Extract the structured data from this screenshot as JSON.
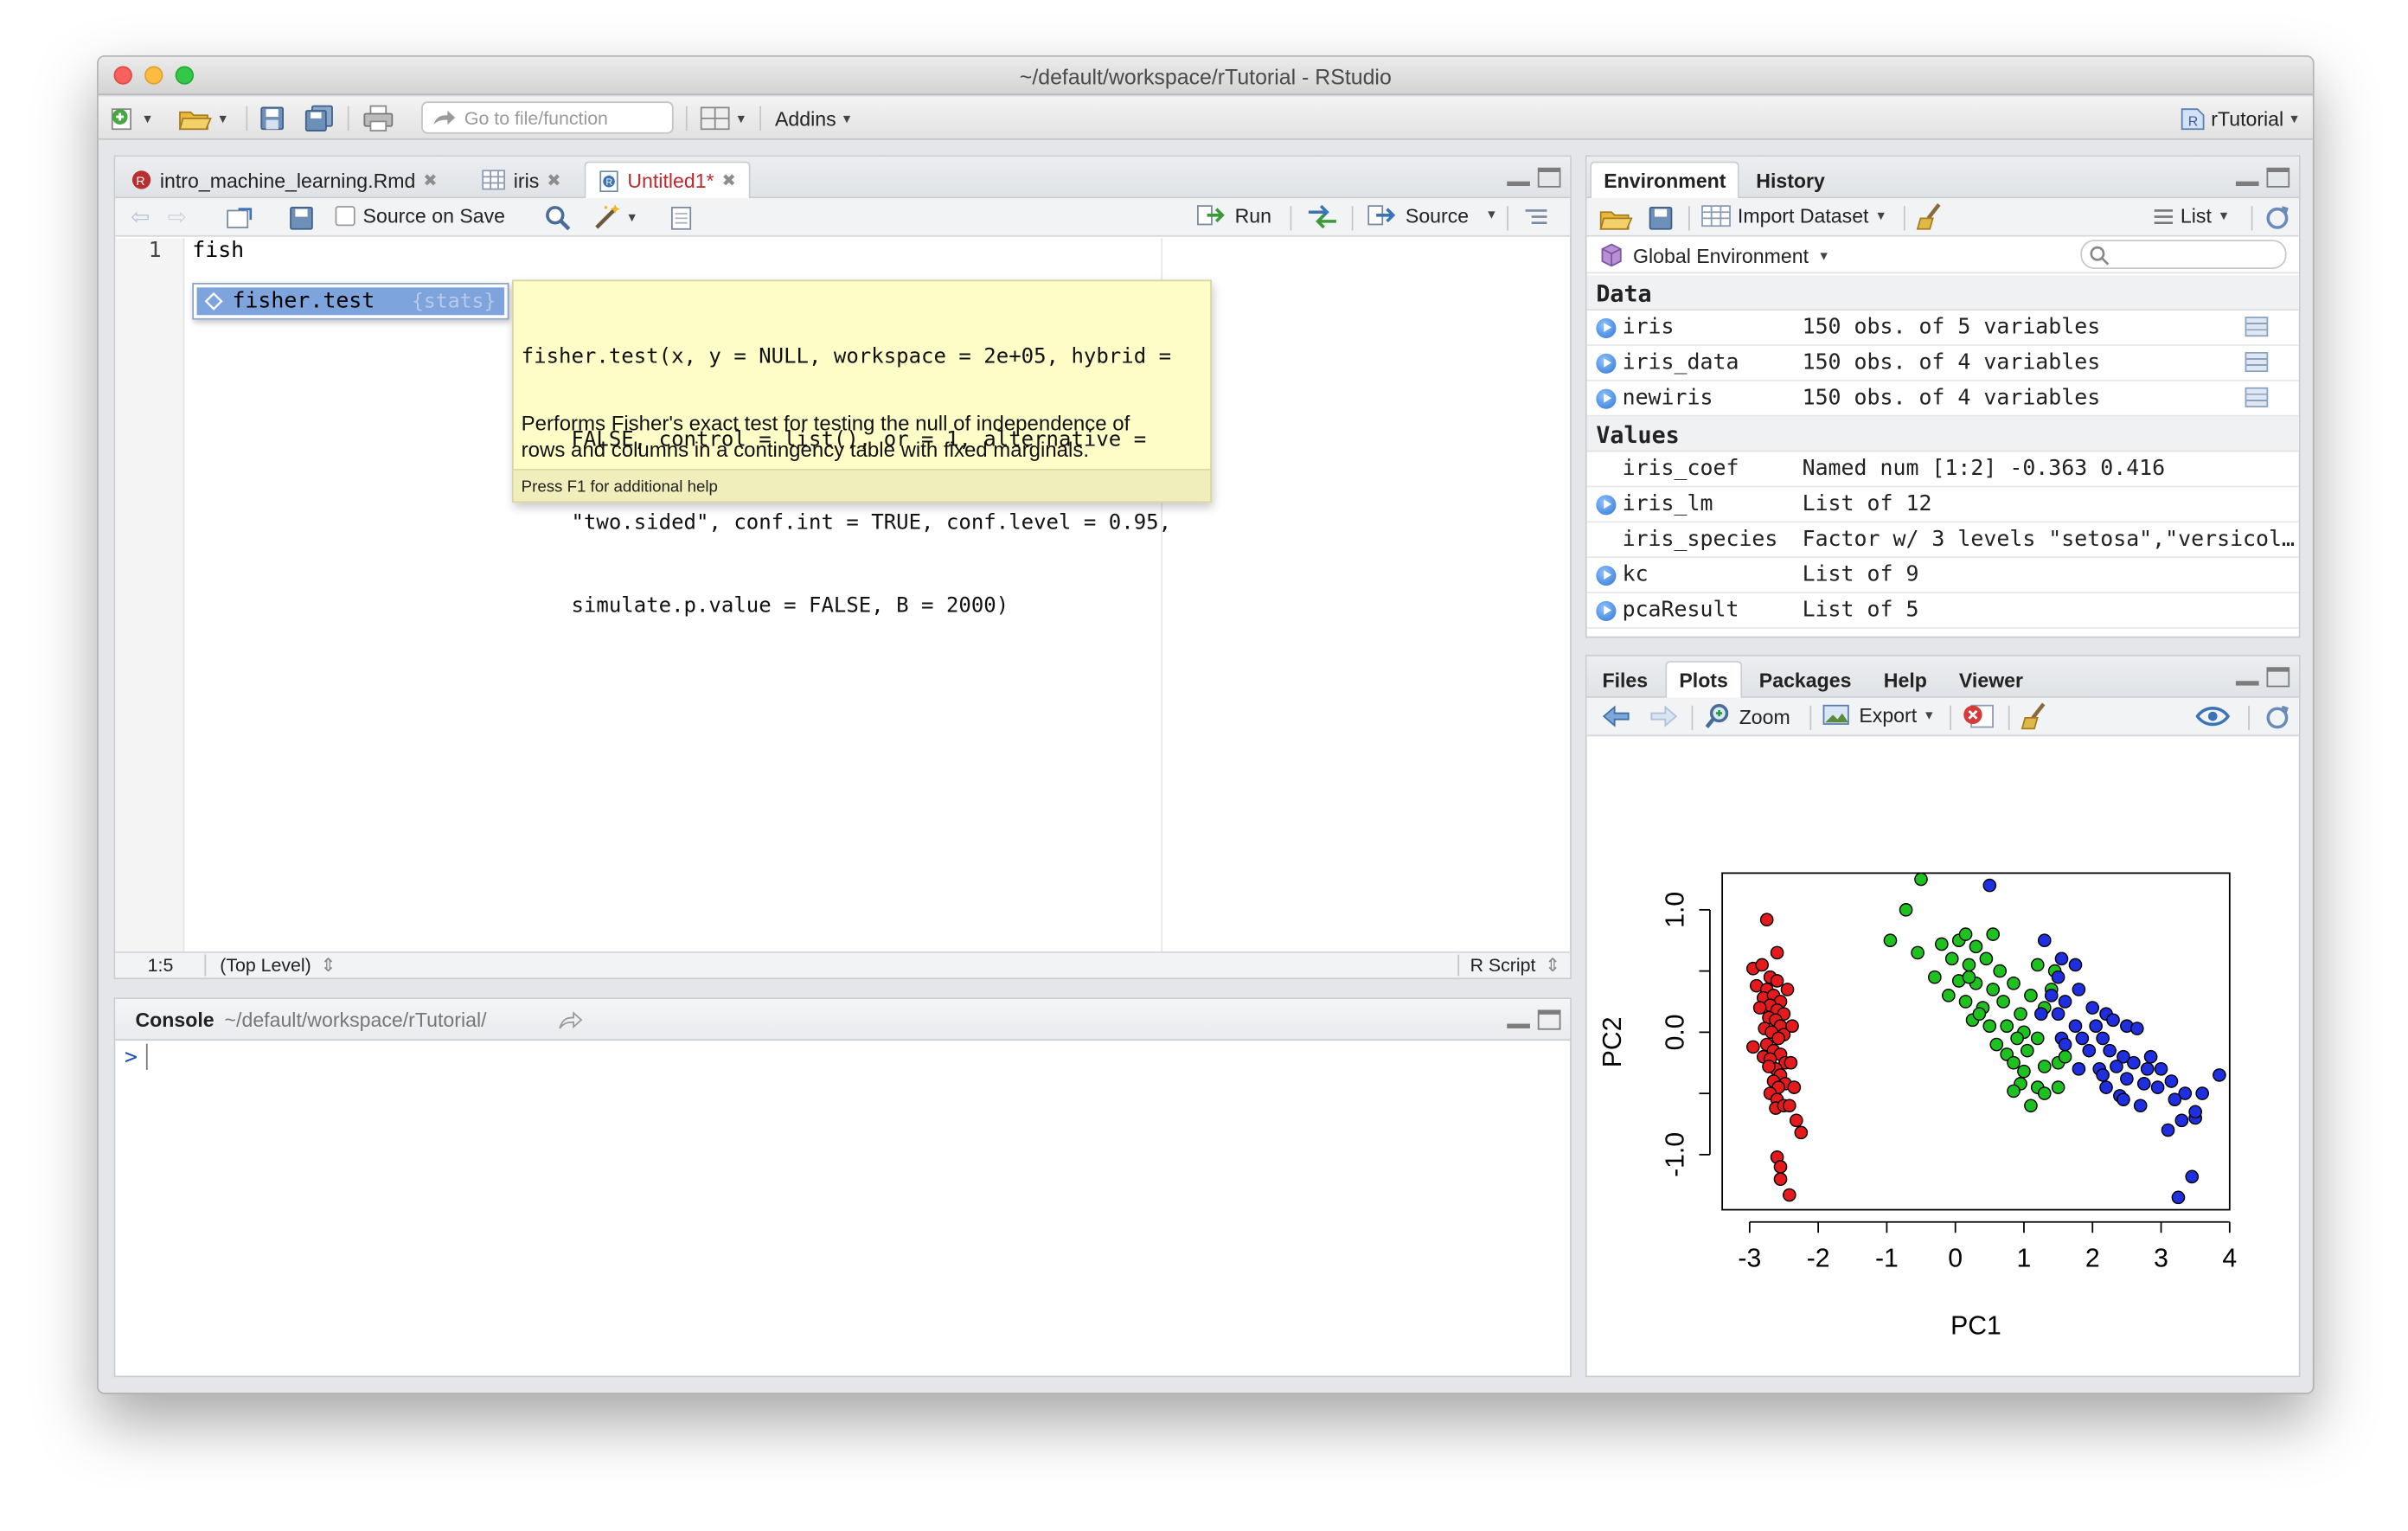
{
  "window": {
    "title": "~/default/workspace/rTutorial - RStudio"
  },
  "toolbar": {
    "goto_placeholder": "Go to file/function",
    "addins": "Addins",
    "project": "rTutorial"
  },
  "source": {
    "tabs": [
      {
        "label": "intro_machine_learning.Rmd"
      },
      {
        "label": "iris"
      },
      {
        "label": "Untitled1*"
      }
    ],
    "toolbar": {
      "source_on_save": "Source on Save",
      "run": "Run",
      "source": "Source"
    },
    "line_number": "1",
    "code": "fish",
    "autocomplete": {
      "item": "fisher.test",
      "pkg": "{stats}"
    },
    "tooltip": {
      "signature": [
        "fisher.test(x, y = NULL, workspace = 2e+05, hybrid =",
        "    FALSE, control = list(), or = 1, alternative =",
        "    \"two.sided\", conf.int = TRUE, conf.level = 0.95,",
        "    simulate.p.value = FALSE, B = 2000)"
      ],
      "description": [
        "Performs Fisher's exact test for testing the null of independence of",
        "rows and columns in a contingency table with fixed marginals."
      ],
      "footer": "Press F1 for additional help"
    },
    "status": {
      "position": "1:5",
      "scope": "(Top Level)",
      "type": "R Script"
    }
  },
  "console": {
    "label": "Console",
    "path": "~/default/workspace/rTutorial/",
    "prompt": ">"
  },
  "environment": {
    "tabs": [
      "Environment",
      "History"
    ],
    "toolbar": {
      "import": "Import Dataset",
      "view": "List"
    },
    "scope": "Global Environment",
    "data_header": "Data",
    "values_header": "Values",
    "data": [
      {
        "name": "iris",
        "value": "150 obs. of 5 variables"
      },
      {
        "name": "iris_data",
        "value": "150 obs. of 4 variables"
      },
      {
        "name": "newiris",
        "value": "150 obs. of 4 variables"
      }
    ],
    "values": [
      {
        "name": "iris_coef",
        "value": "Named num [1:2] -0.363 0.416",
        "expand": false
      },
      {
        "name": "iris_lm",
        "value": "List of 12",
        "expand": true
      },
      {
        "name": "iris_species",
        "value": "Factor w/ 3 levels \"setosa\",\"versicol…",
        "expand": false
      },
      {
        "name": "kc",
        "value": "List of 9",
        "expand": true
      },
      {
        "name": "pcaResult",
        "value": "List of 5",
        "expand": true
      }
    ]
  },
  "files": {
    "tabs": [
      "Files",
      "Plots",
      "Packages",
      "Help",
      "Viewer"
    ],
    "toolbar": {
      "zoom": "Zoom",
      "export": "Export"
    }
  },
  "chart_data": {
    "type": "scatter",
    "xlabel": "PC1",
    "ylabel": "PC2",
    "xlim": [
      -3.4,
      4.0
    ],
    "ylim": [
      -1.45,
      1.3
    ],
    "xticks": [
      "-3",
      "-2",
      "-1",
      "0",
      "1",
      "2",
      "3",
      "4"
    ],
    "yticks": [
      "-1.0",
      "0.0",
      "1.0"
    ],
    "colors": {
      "setosa": "#e41a1c",
      "versicolor": "#1ec21e",
      "virginica": "#1f2fe0"
    },
    "series": [
      {
        "color": "setosa",
        "points": [
          [
            -2.75,
            0.92
          ],
          [
            -2.95,
            0.52
          ],
          [
            -2.82,
            0.55
          ],
          [
            -2.7,
            0.45
          ],
          [
            -2.9,
            0.38
          ],
          [
            -2.6,
            0.42
          ],
          [
            -2.75,
            0.35
          ],
          [
            -2.8,
            0.28
          ],
          [
            -2.65,
            0.3
          ],
          [
            -2.55,
            0.25
          ],
          [
            -2.7,
            0.22
          ],
          [
            -2.85,
            0.2
          ],
          [
            -2.6,
            0.18
          ],
          [
            -2.5,
            0.15
          ],
          [
            -2.72,
            0.12
          ],
          [
            -2.62,
            0.1
          ],
          [
            -2.55,
            0.05
          ],
          [
            -2.78,
            0.03
          ],
          [
            -2.68,
            0.0
          ],
          [
            -2.5,
            -0.02
          ],
          [
            -2.58,
            -0.05
          ],
          [
            -2.75,
            -0.1
          ],
          [
            -2.95,
            -0.12
          ],
          [
            -2.65,
            -0.15
          ],
          [
            -2.55,
            -0.18
          ],
          [
            -2.8,
            -0.2
          ],
          [
            -2.7,
            -0.22
          ],
          [
            -2.48,
            -0.25
          ],
          [
            -2.62,
            -0.3
          ],
          [
            -2.72,
            -0.28
          ],
          [
            -2.55,
            -0.35
          ],
          [
            -2.65,
            -0.4
          ],
          [
            -2.48,
            -0.42
          ],
          [
            -2.58,
            -0.45
          ],
          [
            -2.7,
            -0.5
          ],
          [
            -2.6,
            -0.55
          ],
          [
            -2.35,
            -0.45
          ],
          [
            -2.62,
            -0.62
          ],
          [
            -2.5,
            -0.6
          ],
          [
            -2.32,
            -0.72
          ],
          [
            -2.25,
            -0.82
          ],
          [
            -2.6,
            -1.02
          ],
          [
            -2.55,
            -1.1
          ],
          [
            -2.55,
            -1.2
          ],
          [
            -2.42,
            -1.33
          ],
          [
            -2.6,
            0.65
          ],
          [
            -2.45,
            0.35
          ],
          [
            -2.38,
            0.05
          ],
          [
            -2.4,
            -0.25
          ],
          [
            -2.42,
            -0.6
          ]
        ]
      },
      {
        "color": "versicolor",
        "points": [
          [
            -0.5,
            1.25
          ],
          [
            -0.72,
            1.0
          ],
          [
            -0.95,
            0.75
          ],
          [
            -0.55,
            0.65
          ],
          [
            -0.2,
            0.72
          ],
          [
            0.05,
            0.75
          ],
          [
            0.15,
            0.8
          ],
          [
            0.3,
            0.7
          ],
          [
            -0.05,
            0.6
          ],
          [
            0.2,
            0.55
          ],
          [
            0.45,
            0.6
          ],
          [
            0.65,
            0.5
          ],
          [
            -0.3,
            0.45
          ],
          [
            0.05,
            0.42
          ],
          [
            0.3,
            0.4
          ],
          [
            0.55,
            0.35
          ],
          [
            0.85,
            0.4
          ],
          [
            1.2,
            0.55
          ],
          [
            1.45,
            0.5
          ],
          [
            -0.1,
            0.3
          ],
          [
            0.15,
            0.25
          ],
          [
            0.4,
            0.2
          ],
          [
            0.7,
            0.25
          ],
          [
            0.95,
            0.15
          ],
          [
            1.1,
            0.3
          ],
          [
            1.3,
            0.2
          ],
          [
            0.25,
            0.1
          ],
          [
            0.5,
            0.05
          ],
          [
            0.75,
            0.05
          ],
          [
            1.0,
            0.0
          ],
          [
            0.9,
            -0.05
          ],
          [
            0.6,
            -0.1
          ],
          [
            0.75,
            -0.18
          ],
          [
            1.05,
            -0.15
          ],
          [
            1.2,
            -0.05
          ],
          [
            0.85,
            -0.25
          ],
          [
            1.0,
            -0.32
          ],
          [
            1.3,
            -0.28
          ],
          [
            1.5,
            -0.25
          ],
          [
            0.95,
            -0.42
          ],
          [
            1.2,
            -0.45
          ],
          [
            0.85,
            -0.48
          ],
          [
            1.1,
            -0.6
          ],
          [
            1.3,
            -0.5
          ],
          [
            1.5,
            -0.45
          ],
          [
            1.6,
            -0.2
          ],
          [
            0.35,
            0.15
          ],
          [
            1.4,
            0.35
          ],
          [
            0.2,
            0.45
          ],
          [
            0.55,
            0.8
          ]
        ]
      },
      {
        "color": "virginica",
        "points": [
          [
            0.5,
            1.2
          ],
          [
            1.3,
            0.75
          ],
          [
            1.55,
            0.6
          ],
          [
            1.75,
            0.55
          ],
          [
            1.5,
            0.45
          ],
          [
            1.8,
            0.35
          ],
          [
            1.4,
            0.3
          ],
          [
            1.6,
            0.25
          ],
          [
            1.25,
            0.15
          ],
          [
            1.5,
            0.15
          ],
          [
            2.0,
            0.2
          ],
          [
            2.2,
            0.15
          ],
          [
            1.75,
            0.05
          ],
          [
            2.05,
            0.05
          ],
          [
            2.3,
            0.1
          ],
          [
            2.5,
            0.05
          ],
          [
            2.65,
            0.03
          ],
          [
            1.85,
            -0.05
          ],
          [
            2.15,
            -0.05
          ],
          [
            1.95,
            -0.15
          ],
          [
            2.25,
            -0.15
          ],
          [
            2.45,
            -0.2
          ],
          [
            1.8,
            -0.3
          ],
          [
            2.1,
            -0.3
          ],
          [
            2.35,
            -0.28
          ],
          [
            2.6,
            -0.25
          ],
          [
            2.8,
            -0.3
          ],
          [
            3.0,
            -0.3
          ],
          [
            2.15,
            -0.35
          ],
          [
            2.5,
            -0.38
          ],
          [
            2.75,
            -0.42
          ],
          [
            2.95,
            -0.45
          ],
          [
            3.15,
            -0.4
          ],
          [
            3.35,
            -0.5
          ],
          [
            2.2,
            -0.45
          ],
          [
            2.4,
            -0.52
          ],
          [
            2.7,
            -0.6
          ],
          [
            2.45,
            -0.55
          ],
          [
            3.2,
            -0.55
          ],
          [
            3.5,
            -0.7
          ],
          [
            3.6,
            -0.5
          ],
          [
            3.85,
            -0.35
          ],
          [
            3.5,
            -0.65
          ],
          [
            3.1,
            -0.8
          ],
          [
            3.3,
            -0.72
          ],
          [
            3.45,
            -1.18
          ],
          [
            3.25,
            -1.35
          ],
          [
            1.55,
            -0.05
          ],
          [
            2.85,
            -0.2
          ],
          [
            1.6,
            -0.1
          ]
        ]
      }
    ]
  }
}
